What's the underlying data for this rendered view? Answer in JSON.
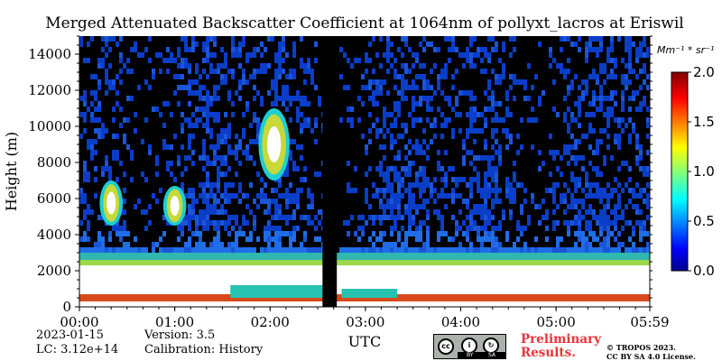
{
  "chart_data": {
    "type": "heatmap",
    "title": "Merged Attenuated Backscatter Coefficient at 1064nm of pollyxt_lacros at Eriswil",
    "xlabel": "UTC",
    "ylabel": "Height (m)",
    "x_ticks": [
      "00:00",
      "01:00",
      "02:00",
      "03:00",
      "04:00",
      "05:00",
      "05:59"
    ],
    "xlim": [
      "00:00",
      "05:59"
    ],
    "y_ticks": [
      0,
      2000,
      4000,
      6000,
      8000,
      10000,
      12000,
      14000
    ],
    "ylim": [
      0,
      15000
    ],
    "no_data_gap": [
      "02:33",
      "02:42"
    ],
    "colorbar": {
      "unit_label": "Mm⁻¹ * sr⁻¹",
      "ticks": [
        "0.0",
        "0.5",
        "1.0",
        "1.5",
        "2.0"
      ],
      "range": [
        0,
        2.0
      ],
      "colormap": "jet"
    },
    "features": [
      {
        "desc": "dense aerosol/boundary layer (saturated)",
        "time": [
          "00:00",
          "05:59"
        ],
        "height_m": [
          0,
          2500
        ]
      },
      {
        "desc": "cloud layer",
        "time": [
          "00:15",
          "00:25"
        ],
        "height_m": [
          4500,
          7000
        ]
      },
      {
        "desc": "cloud layer",
        "time": [
          "00:55",
          "01:05"
        ],
        "height_m": [
          4500,
          6700
        ]
      },
      {
        "desc": "cirrus",
        "time": [
          "01:55",
          "02:10"
        ],
        "height_m": [
          7000,
          11000
        ]
      }
    ]
  },
  "footer": {
    "date": "2023-01-15",
    "lc": "LC: 3.12e+14",
    "version": "Version: 3.5",
    "calibration": "Calibration: History",
    "license_badge": {
      "left_text": "BY",
      "right_text": "SA"
    },
    "preliminary_line1": "Preliminary",
    "preliminary_line2": "Results.",
    "copyright_line1": "© TROPOS 2023.",
    "copyright_line2": "CC BY SA 4.0 License."
  },
  "colors": {
    "background": "#000000",
    "low": "#0a3dc8",
    "mid": "#1f6ee8",
    "high_saturated": "#ffffff",
    "gap": "#000000"
  }
}
